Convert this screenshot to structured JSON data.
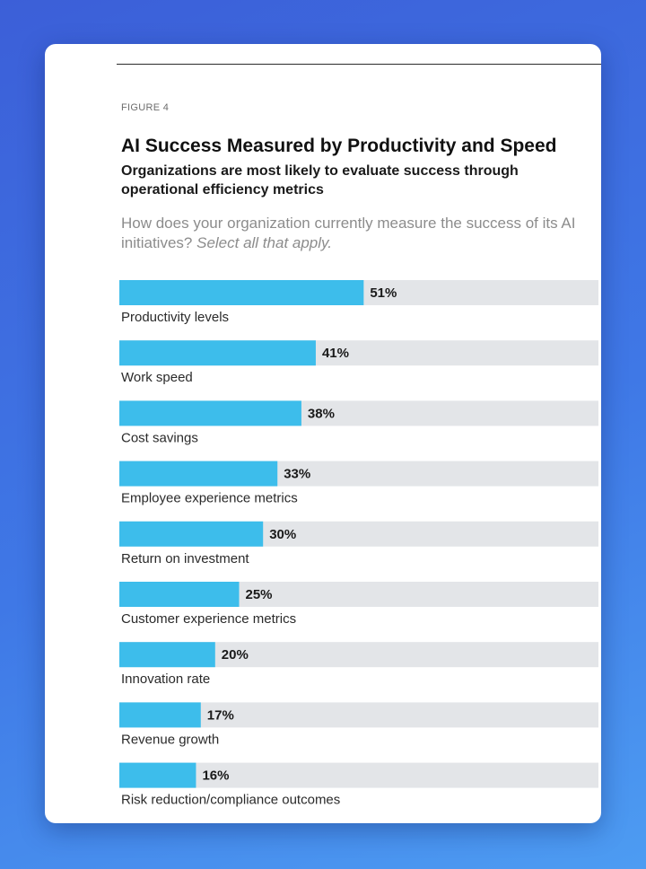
{
  "figure_label": "FIGURE 4",
  "title": "AI Success Measured by Productivity and Speed",
  "subtitle": "Organizations are most likely to evaluate success through operational efficiency metrics",
  "question": "How does your organization currently measure the success of its AI initiatives?",
  "question_emphasis": "Select all that apply.",
  "colors": {
    "bar": "#3dbdeb",
    "track": "#e3e5e8",
    "background_gradient": [
      "#3c5fd8",
      "#4d9cf2"
    ]
  },
  "chart_data": {
    "type": "bar",
    "orientation": "horizontal",
    "categories": [
      "Productivity levels",
      "Work speed",
      "Cost savings",
      "Employee experience metrics",
      "Return on investment",
      "Customer experience metrics",
      "Innovation rate",
      "Revenue growth",
      "Risk reduction/compliance outcomes"
    ],
    "values": [
      51,
      41,
      38,
      33,
      30,
      25,
      20,
      17,
      16
    ],
    "value_labels": [
      "51%",
      "41%",
      "38%",
      "33%",
      "30%",
      "25%",
      "20%",
      "17%",
      "16%"
    ],
    "unit": "%",
    "xlim": [
      0,
      100
    ],
    "grid": false,
    "legend": "none"
  }
}
